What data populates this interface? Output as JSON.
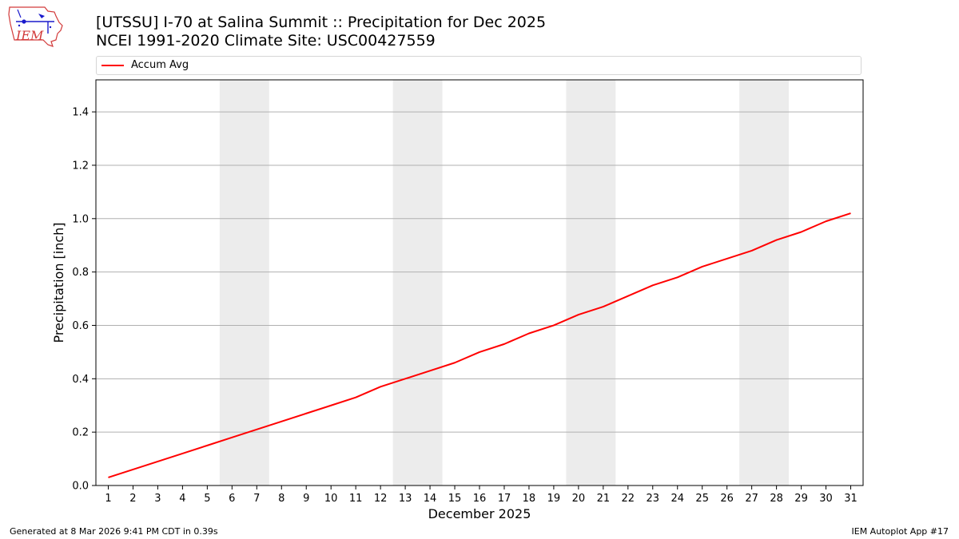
{
  "logo": {
    "text": "IEM",
    "icon": "iem-logo-icon"
  },
  "title_line1": "[UTSSU] I-70 at Salina Summit  :: Precipitation for Dec 2025",
  "title_line2": "NCEI 1991-2020 Climate Site: USC00427559",
  "footer_left": "Generated at 8 Mar 2026 9:41 PM CDT in 0.39s",
  "footer_right": "IEM Autoplot App #17",
  "colors": {
    "series": "#ff0000",
    "weekend_band": "#ececec",
    "grid": "#b0b0b0"
  },
  "chart_data": {
    "type": "line",
    "xlabel": "December 2025",
    "ylabel": "Precipitation [inch]",
    "x": [
      1,
      2,
      3,
      4,
      5,
      6,
      7,
      8,
      9,
      10,
      11,
      12,
      13,
      14,
      15,
      16,
      17,
      18,
      19,
      20,
      21,
      22,
      23,
      24,
      25,
      26,
      27,
      28,
      29,
      30,
      31
    ],
    "xticks": [
      "1",
      "2",
      "3",
      "4",
      "5",
      "6",
      "7",
      "8",
      "9",
      "10",
      "11",
      "12",
      "13",
      "14",
      "15",
      "16",
      "17",
      "18",
      "19",
      "20",
      "21",
      "22",
      "23",
      "24",
      "25",
      "26",
      "27",
      "28",
      "29",
      "30",
      "31"
    ],
    "xlim": [
      0.5,
      31.5
    ],
    "ylim": [
      0,
      1.52
    ],
    "yticks": [
      0.0,
      0.2,
      0.4,
      0.6,
      0.8,
      1.0,
      1.2,
      1.4
    ],
    "ytick_labels": [
      "0.0",
      "0.2",
      "0.4",
      "0.6",
      "0.8",
      "1.0",
      "1.2",
      "1.4"
    ],
    "grid": "horizontal",
    "legend_position": "top",
    "weekend_bands": [
      [
        5.5,
        7.5
      ],
      [
        12.5,
        14.5
      ],
      [
        19.5,
        21.5
      ],
      [
        26.5,
        28.5
      ]
    ],
    "series": [
      {
        "name": "Accum Avg",
        "color": "#ff0000",
        "values": [
          0.03,
          0.06,
          0.09,
          0.12,
          0.15,
          0.18,
          0.21,
          0.24,
          0.27,
          0.3,
          0.33,
          0.37,
          0.4,
          0.43,
          0.46,
          0.5,
          0.53,
          0.57,
          0.6,
          0.64,
          0.67,
          0.71,
          0.75,
          0.78,
          0.82,
          0.85,
          0.88,
          0.92,
          0.95,
          0.99,
          1.02
        ]
      }
    ]
  }
}
